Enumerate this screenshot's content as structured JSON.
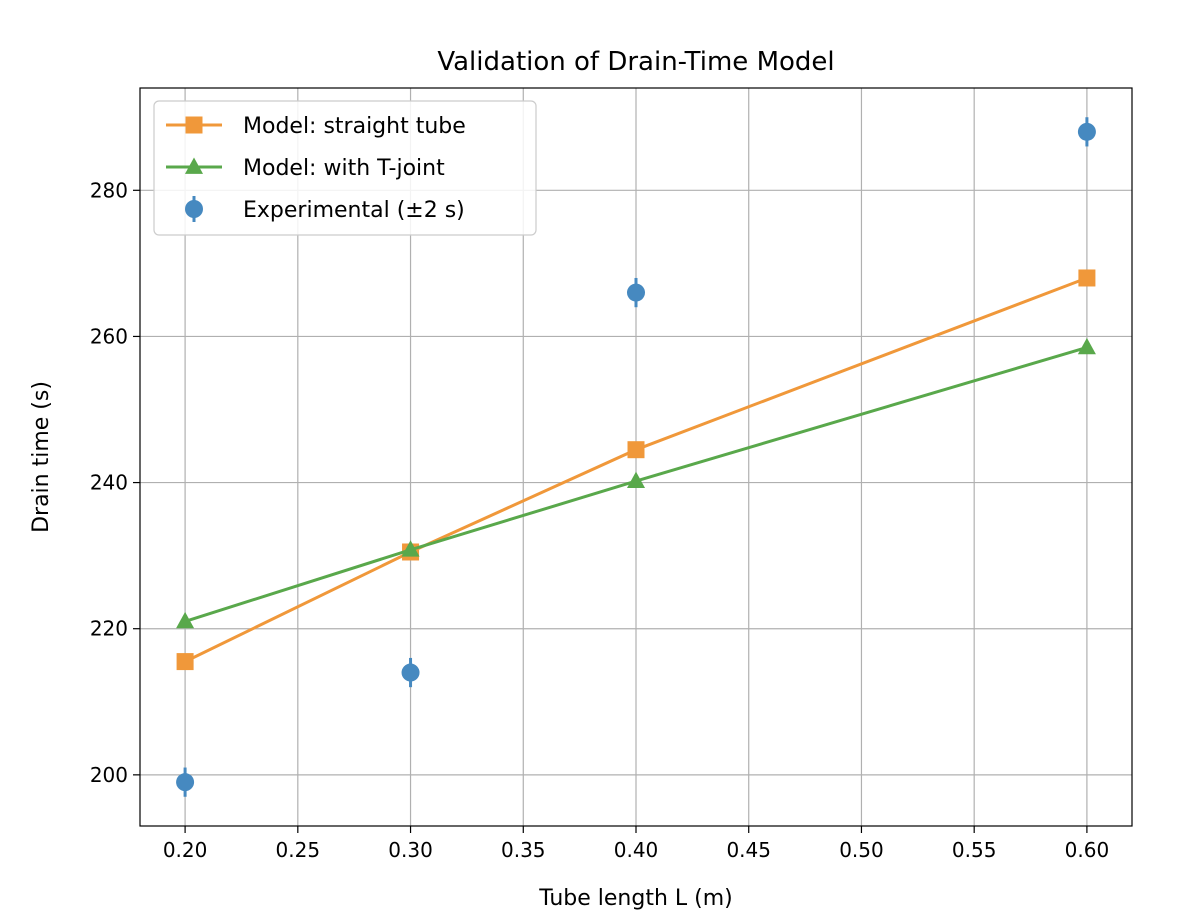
{
  "chart_data": {
    "type": "line",
    "title": "Validation of Drain-Time Model",
    "xlabel": "Tube length L (m)",
    "ylabel": "Drain time (s)",
    "xlim": [
      0.18,
      0.62
    ],
    "ylim": [
      193,
      294
    ],
    "xticks": [
      0.2,
      0.25,
      0.3,
      0.35,
      0.4,
      0.45,
      0.5,
      0.55,
      0.6
    ],
    "xtick_labels": [
      "0.20",
      "0.25",
      "0.30",
      "0.35",
      "0.40",
      "0.45",
      "0.50",
      "0.55",
      "0.60"
    ],
    "yticks": [
      200,
      220,
      240,
      260,
      280
    ],
    "ytick_labels": [
      "200",
      "220",
      "240",
      "260",
      "280"
    ],
    "grid": true,
    "legend_position": "top-left",
    "series": [
      {
        "name": "Model: straight tube",
        "kind": "line",
        "marker": "square",
        "color": "#f0983a",
        "x": [
          0.2,
          0.3,
          0.4,
          0.6
        ],
        "y": [
          215.5,
          230.5,
          244.5,
          268.0
        ]
      },
      {
        "name": "Model: with T-joint",
        "kind": "line",
        "marker": "triangle",
        "color": "#59a84b",
        "x": [
          0.2,
          0.3,
          0.4,
          0.6
        ],
        "y": [
          221.0,
          230.8,
          240.2,
          258.5
        ]
      },
      {
        "name": "Experimental (±2 s)",
        "kind": "errorbar",
        "marker": "circle",
        "color": "#4689c0",
        "x": [
          0.2,
          0.3,
          0.4,
          0.6
        ],
        "y": [
          199.0,
          214.0,
          266.0,
          288.0
        ],
        "yerr": 2
      }
    ]
  }
}
